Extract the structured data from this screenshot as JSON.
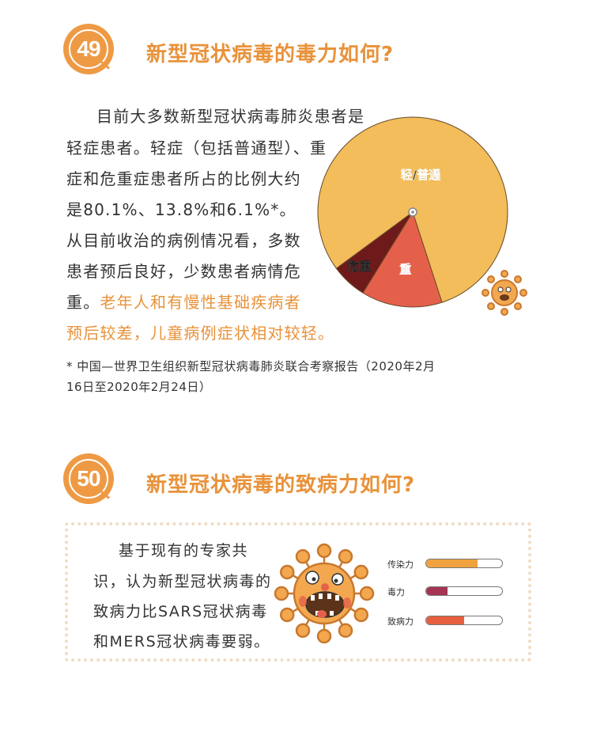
{
  "q49": {
    "number": "49",
    "title": "新型冠状病毒的毒力如何?",
    "lines": [
      "目前大多数新型冠状病毒肺炎患者是",
      "轻症患者。轻症（包括普通型）、重",
      "症和危重症患者所占的比例大约",
      "是80.1%、13.8%和6.1%*。",
      "从目前收治的病例情况看，多数",
      "患者预后良好，少数患者病情危",
      "重。"
    ],
    "highlight_lines": [
      "老年人和有慢性基础疾病者",
      "预后较差，儿童病例症状相对较轻。"
    ],
    "footnote": [
      "* 中国—世界卫生组织新型冠状病毒肺炎联合考察报告（2020年2月",
      "16日至2020年2月24日）"
    ]
  },
  "q50": {
    "number": "50",
    "title": "新型冠状病毒的致病力如何?",
    "lines": [
      "基于现有的专家共",
      "识，认为新型冠状病毒的",
      "致病力比SARS冠状病毒",
      "和MERS冠状病毒要弱。"
    ]
  },
  "chart_data": [
    {
      "type": "pie",
      "labels": [
        "轻/普通",
        "重",
        "危重"
      ],
      "values": [
        80.1,
        13.8,
        6.1
      ],
      "colors": [
        "#f2bd5a",
        "#e5604a",
        "#6e1a1a"
      ]
    },
    {
      "type": "bar",
      "orientation": "horizontal",
      "categories": [
        "传染力",
        "毒力",
        "致病力"
      ],
      "values": [
        68,
        28,
        50
      ],
      "colors": [
        "#f0a23e",
        "#a43452",
        "#e6603f"
      ]
    }
  ],
  "colors": {
    "accent": "#e8923a"
  }
}
